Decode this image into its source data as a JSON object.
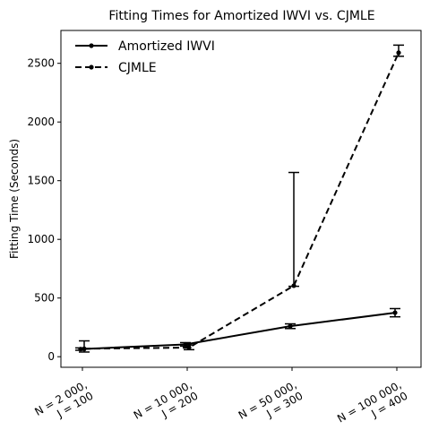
{
  "chart_data": {
    "type": "line",
    "title": "Fitting Times for Amortized IWVI vs. CJMLE",
    "xlabel": "",
    "ylabel": "Fitting Time (Seconds)",
    "categories": [
      [
        "N = 2 000,",
        "J = 100"
      ],
      [
        "N = 10 000,",
        "J = 200"
      ],
      [
        "N = 50 000,",
        "J = 300"
      ],
      [
        "N = 100 000,",
        "J = 400"
      ]
    ],
    "yticks": [
      0,
      500,
      1000,
      1500,
      2000,
      2500
    ],
    "ylim": [
      -90,
      2780
    ],
    "grid": false,
    "legend": "top-left",
    "series": [
      {
        "name": "Amortized IWVI",
        "style": "solid",
        "color": "#000000",
        "values": [
          65,
          105,
          260,
          375
        ],
        "err_low": [
          55,
          90,
          240,
          340
        ],
        "err_high": [
          75,
          120,
          280,
          410
        ]
      },
      {
        "name": "CJMLE",
        "style": "dashed",
        "color": "#000000",
        "values": [
          68,
          78,
          605,
          2590
        ],
        "err_low": [
          40,
          60,
          600,
          2560
        ],
        "err_high": [
          135,
          100,
          1570,
          2655
        ]
      }
    ]
  }
}
